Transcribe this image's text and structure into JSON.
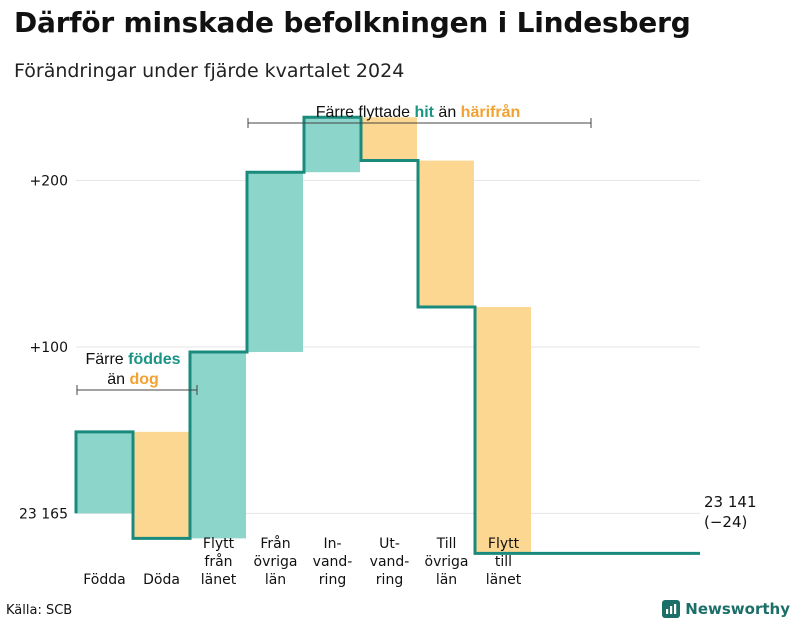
{
  "colors": {
    "increase": "#8cd5cb",
    "decrease": "#fcd792",
    "line": "#1a8a7c",
    "teal_text": "#1a9484",
    "orange_text": "#f2a230",
    "bracket": "#444444"
  },
  "chart_data": {
    "type": "waterfall",
    "title": "Därför minskade befolkningen i Lindesberg",
    "subtitle": "Förändringar under fjärde kvartalet 2024",
    "start_value": 23165,
    "start_label": "23 165",
    "end_value": 23141,
    "end_label": "23 141",
    "end_change_label": "(−24)",
    "ylim": [
      -28,
      258
    ],
    "y_ticks": [
      {
        "value": 0,
        "label": "23 165"
      },
      {
        "value": 100,
        "label": "+100"
      },
      {
        "value": 200,
        "label": "+200"
      }
    ],
    "steps": [
      {
        "label_lines": [
          "Födda"
        ],
        "change": 49
      },
      {
        "label_lines": [
          "Döda"
        ],
        "change": -64
      },
      {
        "label_lines": [
          "Flytt",
          "från",
          "länet"
        ],
        "change": 112
      },
      {
        "label_lines": [
          "Från",
          "övriga",
          "län"
        ],
        "change": 108
      },
      {
        "label_lines": [
          "In-",
          "vand-",
          "ring"
        ],
        "change": 33
      },
      {
        "label_lines": [
          "Ut-",
          "vand-",
          "ring"
        ],
        "change": -26
      },
      {
        "label_lines": [
          "Till",
          "övriga",
          "län"
        ],
        "change": -88
      },
      {
        "label_lines": [
          "Flytt",
          "till",
          "länet"
        ],
        "change": -148
      }
    ],
    "annotations": [
      {
        "text_parts": [
          "Färre ",
          "föddes"
        ],
        "line2_parts": [
          "än ",
          "dog"
        ]
      },
      {
        "text_parts": [
          "Färre flyttade ",
          "hit",
          " än ",
          "härifrån"
        ]
      }
    ]
  },
  "footer": {
    "source": "Källa: SCB",
    "brand": "Newsworthy"
  }
}
